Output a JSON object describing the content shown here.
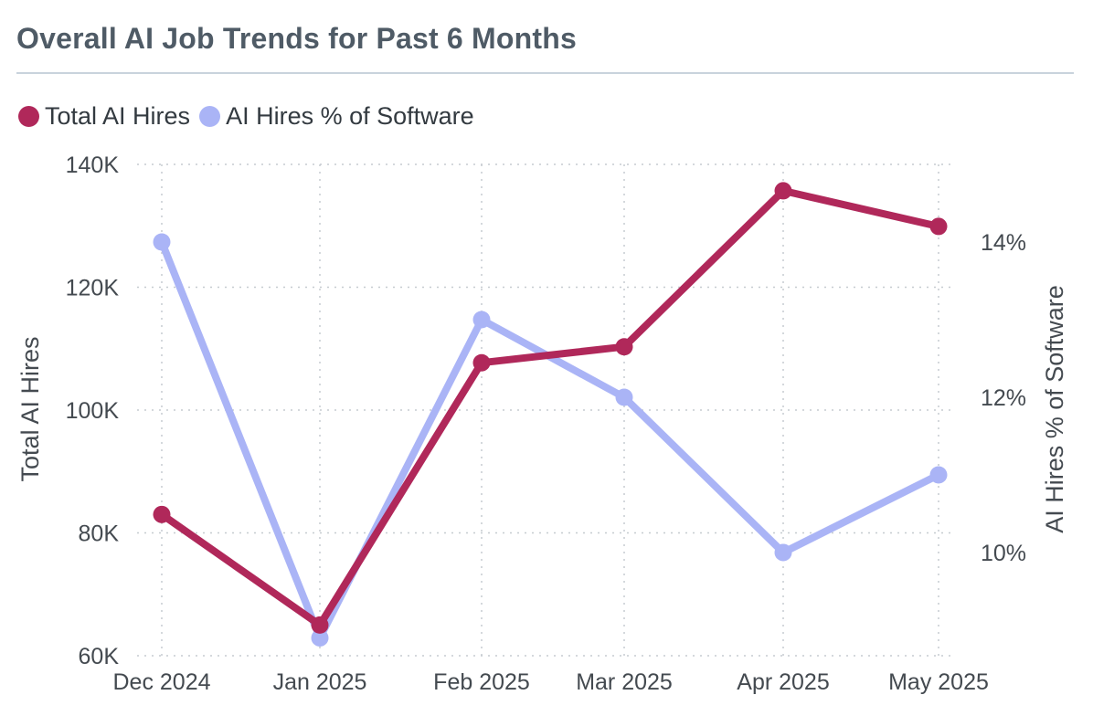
{
  "title": "Overall AI Job Trends for Past 6 Months",
  "legend": [
    {
      "label": "Total AI Hires",
      "color": "#b0285a"
    },
    {
      "label": "AI Hires % of Software",
      "color": "#aab4f6"
    }
  ],
  "chart_data": {
    "type": "line",
    "title": "Overall AI Job Trends for Past 6 Months",
    "categories": [
      "Dec 2024",
      "Jan 2025",
      "Feb 2025",
      "Mar 2025",
      "Apr 2025",
      "May 2025"
    ],
    "series": [
      {
        "name": "Total AI Hires",
        "axis": "left",
        "color": "#b0285a",
        "values": [
          83000,
          65000,
          107700,
          110300,
          135700,
          129900
        ]
      },
      {
        "name": "AI Hires % of Software",
        "axis": "right",
        "color": "#aab4f6",
        "values": [
          14.0,
          8.9,
          13.0,
          12.0,
          10.0,
          11.0
        ]
      }
    ],
    "y_left": {
      "label": "Total AI Hires",
      "ylim": [
        60000,
        140000
      ],
      "ticks": [
        60000,
        80000,
        100000,
        120000,
        140000
      ],
      "tick_labels": [
        "60K",
        "80K",
        "100K",
        "120K",
        "140K"
      ]
    },
    "y_right": {
      "label": "AI Hires % of Software",
      "ylim": [
        8.67,
        15.0
      ],
      "ticks": [
        10,
        12,
        14
      ],
      "tick_labels": [
        "10%",
        "12%",
        "14%"
      ]
    },
    "grid": true,
    "legend_position": "top-left"
  }
}
